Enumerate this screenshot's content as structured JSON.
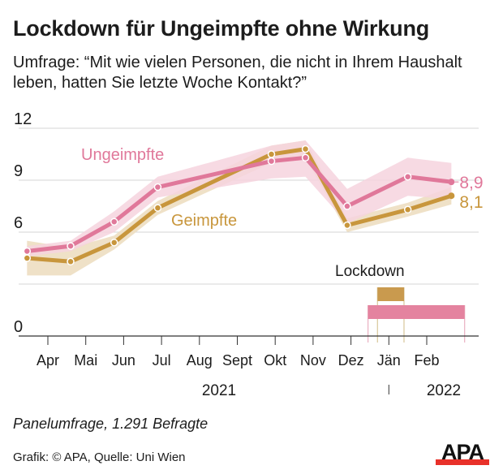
{
  "header": {
    "title": "Lockdown für Ungeimpfte ohne Wirkung",
    "subtitle": "Umfrage: “Mit wie vielen Personen, die nicht in Ihrem Haushalt leben, hatten Sie letzte Woche Kontakt?”"
  },
  "footer": {
    "note": "Panelumfrage, 1.291 Befragte",
    "credit": "Grafik: © APA, Quelle: Uni Wien",
    "logo_text": "APA"
  },
  "colors": {
    "ungeimpfte_line": "#E0789A",
    "ungeimpfte_band": "#F6D3DE",
    "geimpfte_line": "#C8963C",
    "geimpfte_band": "#EEDFC4",
    "lockdown_geimpfte": "#C99A4E",
    "lockdown_ungeimpfte": "#E4839F",
    "grid": "#d6d6d6",
    "axis": "#333333",
    "logo_red": "#E8312A"
  },
  "chart_data": {
    "type": "line",
    "title": "Lockdown für Ungeimpfte ohne Wirkung",
    "xlabel": "",
    "ylabel": "",
    "ylim": [
      0,
      12
    ],
    "yticks": [
      0,
      3,
      6,
      9,
      12
    ],
    "ytick_labels": [
      "0",
      "",
      "6",
      "9",
      "12"
    ],
    "grid": true,
    "x_axis": {
      "months": [
        "Apr",
        "Mai",
        "Jun",
        "Jul",
        "Aug",
        "Sept",
        "Okt",
        "Nov",
        "Dez",
        "Jän",
        "Feb"
      ],
      "years": [
        {
          "label": "2021",
          "under": "Aug-Sept"
        },
        {
          "label": "2022",
          "under": "Feb"
        }
      ],
      "range_months": [
        -0.75,
        11.5
      ]
    },
    "x": [
      -0.55,
      0.6,
      1.75,
      2.9,
      5.9,
      6.8,
      7.9,
      9.5,
      10.65
    ],
    "series": [
      {
        "name": "Ungeimpfte",
        "values": [
          4.9,
          5.2,
          6.6,
          8.6,
          10.1,
          10.3,
          7.5,
          9.2,
          8.9
        ],
        "band_low": [
          4.6,
          4.9,
          6.0,
          8.0,
          9.1,
          9.2,
          6.5,
          8.1,
          7.9
        ],
        "band_high": [
          5.2,
          5.5,
          7.2,
          9.2,
          11.0,
          11.3,
          8.5,
          10.3,
          10.0
        ],
        "end_label": "8,9",
        "label_position": "upper-middle"
      },
      {
        "name": "Geimpfte",
        "values": [
          4.5,
          4.3,
          5.4,
          7.4,
          10.5,
          10.8,
          6.4,
          7.3,
          8.1
        ],
        "band_low": [
          3.5,
          3.5,
          5.0,
          7.0,
          10.0,
          10.3,
          6.0,
          6.9,
          7.6
        ],
        "band_high": [
          5.5,
          5.1,
          5.8,
          7.8,
          11.0,
          11.3,
          6.8,
          7.7,
          8.6
        ],
        "end_label": "8,1",
        "label_position": "middle"
      }
    ],
    "annotations": [
      {
        "label": "Lockdown",
        "bars": [
          {
            "group": "Geimpfte",
            "start_month": 8.7,
            "end_month": 9.4
          },
          {
            "group": "Ungeimpfte",
            "start_month": 8.45,
            "end_month": 11.0
          }
        ]
      }
    ]
  }
}
